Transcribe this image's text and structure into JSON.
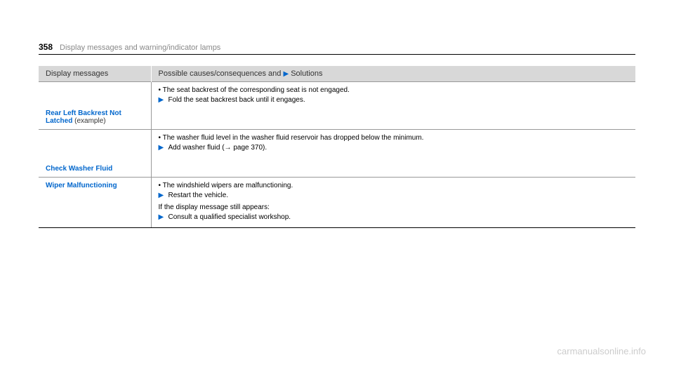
{
  "header": {
    "pageNumber": "358",
    "title": "Display messages and warning/indicator lamps"
  },
  "tableHeaders": {
    "col1": "Display messages",
    "col2_prefix": "Possible causes/consequences and ",
    "col2_suffix": " Solutions"
  },
  "rows": [
    {
      "msgTitle": "Rear Left Backrest Not Latched",
      "msgNote": " (example)",
      "cause": "The seat backrest of the corresponding seat is not engaged.",
      "actions": [
        "Fold the seat backrest back until it engages."
      ],
      "subtext": null,
      "subActions": null,
      "tall": true
    },
    {
      "msgTitle": "Check Washer Fluid",
      "msgNote": "",
      "cause": "The washer fluid level in the washer fluid reservoir has dropped below the minimum.",
      "actions": [
        "Add washer fluid (→ page 370)."
      ],
      "subtext": null,
      "subActions": null,
      "tall": true
    },
    {
      "msgTitle": "Wiper Malfunctioning",
      "msgNote": "",
      "cause": "The windshield wipers are malfunctioning.",
      "actions": [
        "Restart the vehicle."
      ],
      "subtext": "If the display message still appears:",
      "subActions": [
        "Consult a qualified specialist workshop."
      ],
      "tall": false
    }
  ],
  "watermark": "carmanualsonline.info"
}
